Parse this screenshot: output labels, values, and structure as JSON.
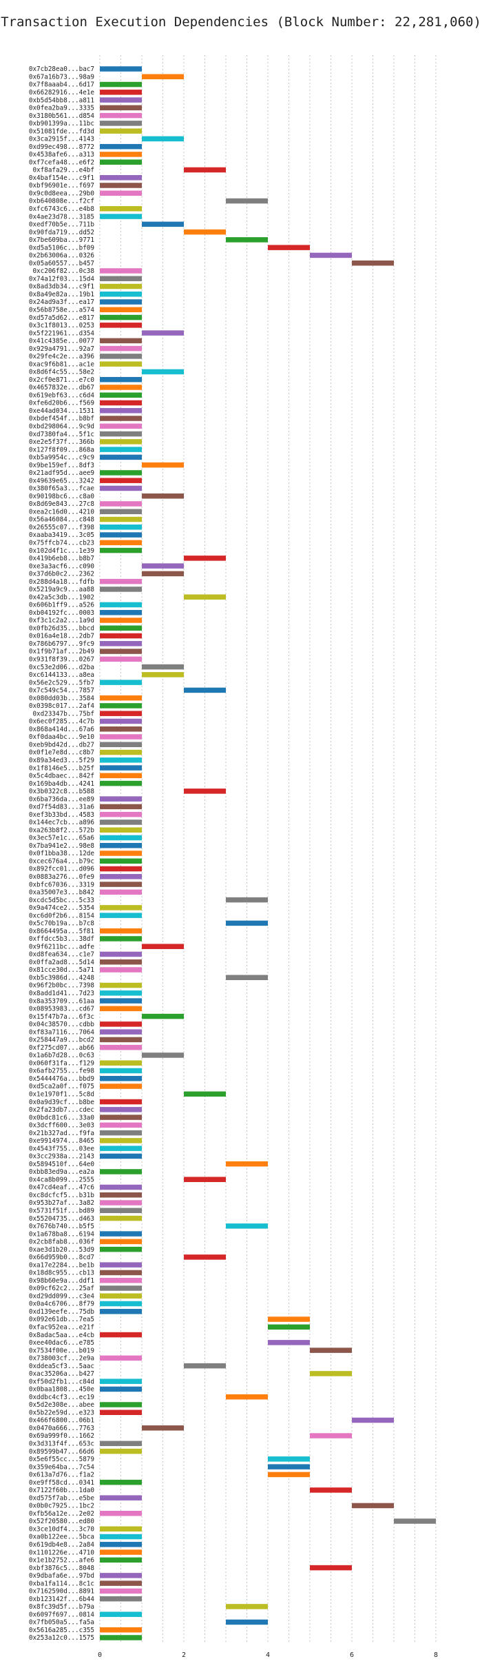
{
  "chart_data": {
    "type": "bar",
    "orientation": "horizontal",
    "title": "Transaction Execution Dependencies (Block Number: 22,281,060)",
    "xlabel": "",
    "ylabel": "",
    "xlim": [
      -0.2,
      8.4
    ],
    "xticks": [
      0,
      2,
      4,
      6,
      8
    ],
    "grid": true,
    "legend": "none",
    "palette": [
      "#1f77b4",
      "#ff7f0e",
      "#2ca02c",
      "#d62728",
      "#9467bd",
      "#8c564b",
      "#e377c2",
      "#7f7f7f",
      "#bcbd22",
      "#17becf"
    ],
    "rows": [
      {
        "tx": "0x7cb28ea0...bac7",
        "start": 0,
        "end": 1
      },
      {
        "tx": "0x67a16b73...98a9",
        "start": 1,
        "end": 2
      },
      {
        "tx": "0x7f8aaab4...6d17",
        "start": 0,
        "end": 1
      },
      {
        "tx": "0x66282916...4e1e",
        "start": 0,
        "end": 1
      },
      {
        "tx": "0xb5d54bb8...a811",
        "start": 0,
        "end": 1
      },
      {
        "tx": "0x0fea2ba9...3335",
        "start": 0,
        "end": 1
      },
      {
        "tx": "0x3180b561...d854",
        "start": 0,
        "end": 1
      },
      {
        "tx": "0xb901399a...11bc",
        "start": 0,
        "end": 1
      },
      {
        "tx": "0x51081fde...fd3d",
        "start": 0,
        "end": 1
      },
      {
        "tx": "0x3ca2915f...4143",
        "start": 1,
        "end": 2
      },
      {
        "tx": "0xd99ec498...8772",
        "start": 0,
        "end": 1
      },
      {
        "tx": "0x4538afe6...a313",
        "start": 0,
        "end": 1
      },
      {
        "tx": "0xf7cefa48...e6f2",
        "start": 0,
        "end": 1
      },
      {
        "tx": "0xf8afa29...e4bf",
        "start": 2,
        "end": 3
      },
      {
        "tx": "0x4baf154e...c9f1",
        "start": 0,
        "end": 1
      },
      {
        "tx": "0xbf96901e...f697",
        "start": 0,
        "end": 1
      },
      {
        "tx": "0x9c0d8eea...29b0",
        "start": 0,
        "end": 1
      },
      {
        "tx": "0xb640808e...f2cf",
        "start": 3,
        "end": 4
      },
      {
        "tx": "0xfc6743c6...e4b8",
        "start": 0,
        "end": 1
      },
      {
        "tx": "0x4ae23d78...3185",
        "start": 0,
        "end": 1
      },
      {
        "tx": "0xedf70b5e...711b",
        "start": 1,
        "end": 2
      },
      {
        "tx": "0x90fda719...dd52",
        "start": 2,
        "end": 3
      },
      {
        "tx": "0x7be609ba...9771",
        "start": 3,
        "end": 4
      },
      {
        "tx": "0xd5a5106c...bf09",
        "start": 4,
        "end": 5
      },
      {
        "tx": "0x2b63006a...0326",
        "start": 5,
        "end": 6
      },
      {
        "tx": "0x05a60557...b457",
        "start": 6,
        "end": 7
      },
      {
        "tx": "0xc206f82...0c38",
        "start": 0,
        "end": 1
      },
      {
        "tx": "0x74a12f03...15d4",
        "start": 0,
        "end": 1
      },
      {
        "tx": "0x8ad3db34...c9f1",
        "start": 0,
        "end": 1
      },
      {
        "tx": "0x8a49e82a...19b1",
        "start": 0,
        "end": 1
      },
      {
        "tx": "0x24ad9a3f...ea17",
        "start": 0,
        "end": 1
      },
      {
        "tx": "0x56b8758e...a574",
        "start": 0,
        "end": 1
      },
      {
        "tx": "0xd57a5d62...e817",
        "start": 0,
        "end": 1
      },
      {
        "tx": "0x3c1f8013...0253",
        "start": 0,
        "end": 1
      },
      {
        "tx": "0x5f221961...d354",
        "start": 1,
        "end": 2
      },
      {
        "tx": "0x41c4385e...0077",
        "start": 0,
        "end": 1
      },
      {
        "tx": "0x929a4791...92a7",
        "start": 0,
        "end": 1
      },
      {
        "tx": "0x29fe4c2e...a396",
        "start": 0,
        "end": 1
      },
      {
        "tx": "0xac9f6b81...ac1e",
        "start": 0,
        "end": 1
      },
      {
        "tx": "0x8d6f4c55...58e2",
        "start": 1,
        "end": 2
      },
      {
        "tx": "0x2cf0e871...e7c0",
        "start": 0,
        "end": 1
      },
      {
        "tx": "0x4657832e...db67",
        "start": 0,
        "end": 1
      },
      {
        "tx": "0x619ebf63...c6d4",
        "start": 0,
        "end": 1
      },
      {
        "tx": "0xfe6d20b6...f569",
        "start": 0,
        "end": 1
      },
      {
        "tx": "0xe44ad034...1531",
        "start": 0,
        "end": 1
      },
      {
        "tx": "0xbdef454f...b8bf",
        "start": 0,
        "end": 1
      },
      {
        "tx": "0xbd298064...9c9d",
        "start": 0,
        "end": 1
      },
      {
        "tx": "0xd7380fa4...5f1c",
        "start": 0,
        "end": 1
      },
      {
        "tx": "0xe2e5f37f...366b",
        "start": 0,
        "end": 1
      },
      {
        "tx": "0x127f8f09...868a",
        "start": 0,
        "end": 1
      },
      {
        "tx": "0xb5a9954c...c9c9",
        "start": 0,
        "end": 1
      },
      {
        "tx": "0x9be159ef...8df3",
        "start": 1,
        "end": 2
      },
      {
        "tx": "0x21adf95d...aee9",
        "start": 0,
        "end": 1
      },
      {
        "tx": "0x49639e65...3242",
        "start": 0,
        "end": 1
      },
      {
        "tx": "0x380f65a3...fcae",
        "start": 0,
        "end": 1
      },
      {
        "tx": "0x90198bc6...c8a0",
        "start": 1,
        "end": 2
      },
      {
        "tx": "0x8d69e843...27c8",
        "start": 0,
        "end": 1
      },
      {
        "tx": "0xea2c16d0...4210",
        "start": 0,
        "end": 1
      },
      {
        "tx": "0x56a46084...c848",
        "start": 0,
        "end": 1
      },
      {
        "tx": "0x26555c07...f398",
        "start": 0,
        "end": 1
      },
      {
        "tx": "0xaaba3419...3c05",
        "start": 0,
        "end": 1
      },
      {
        "tx": "0x75ffcb74...cb23",
        "start": 0,
        "end": 1
      },
      {
        "tx": "0x102d4f1c...1e39",
        "start": 0,
        "end": 1
      },
      {
        "tx": "0x419b6eb8...b8b7",
        "start": 2,
        "end": 3
      },
      {
        "tx": "0xe3a3acf6...c090",
        "start": 1,
        "end": 2
      },
      {
        "tx": "0x37d6b0c2...2362",
        "start": 1,
        "end": 2
      },
      {
        "tx": "0x288d4a18...fdfb",
        "start": 0,
        "end": 1
      },
      {
        "tx": "0x5219a9c9...aa88",
        "start": 0,
        "end": 1
      },
      {
        "tx": "0x42a5c3db...1902",
        "start": 2,
        "end": 3
      },
      {
        "tx": "0x606b1ff9...a526",
        "start": 0,
        "end": 1
      },
      {
        "tx": "0xb04192fc...0003",
        "start": 0,
        "end": 1
      },
      {
        "tx": "0xf3c1c2a2...1a9d",
        "start": 0,
        "end": 1
      },
      {
        "tx": "0x0fb26d35...bbcd",
        "start": 0,
        "end": 1
      },
      {
        "tx": "0x016a4e18...2db7",
        "start": 0,
        "end": 1
      },
      {
        "tx": "0x786b6797...9fc9",
        "start": 0,
        "end": 1
      },
      {
        "tx": "0x1f9b71af...2b49",
        "start": 0,
        "end": 1
      },
      {
        "tx": "0x931f8f39...0267",
        "start": 0,
        "end": 1
      },
      {
        "tx": "0xc53e2d06...d2ba",
        "start": 1,
        "end": 2
      },
      {
        "tx": "0xc6144133...a8ea",
        "start": 1,
        "end": 2
      },
      {
        "tx": "0x56e2c529...5fb7",
        "start": 0,
        "end": 1
      },
      {
        "tx": "0x7c549c54...7857",
        "start": 2,
        "end": 3
      },
      {
        "tx": "0x080dd03b...3584",
        "start": 0,
        "end": 1
      },
      {
        "tx": "0x0398c017...2af4",
        "start": 0,
        "end": 1
      },
      {
        "tx": "0xd23347b...75bf",
        "start": 0,
        "end": 1
      },
      {
        "tx": "0x6ec0f285...4c7b",
        "start": 0,
        "end": 1
      },
      {
        "tx": "0x868a414d...67a6",
        "start": 0,
        "end": 1
      },
      {
        "tx": "0xf0daa4bc...9e10",
        "start": 0,
        "end": 1
      },
      {
        "tx": "0xeb9bd42d...db27",
        "start": 0,
        "end": 1
      },
      {
        "tx": "0x0f1e7e8d...c8b7",
        "start": 0,
        "end": 1
      },
      {
        "tx": "0x89a34ed3...5f29",
        "start": 0,
        "end": 1
      },
      {
        "tx": "0x1f8146e5...b25f",
        "start": 0,
        "end": 1
      },
      {
        "tx": "0x5c4dbaec...842f",
        "start": 0,
        "end": 1
      },
      {
        "tx": "0x169ba4db...4241",
        "start": 0,
        "end": 1
      },
      {
        "tx": "0x3b0322c8...b588",
        "start": 2,
        "end": 3
      },
      {
        "tx": "0x6ba736da...ee89",
        "start": 0,
        "end": 1
      },
      {
        "tx": "0xd7f54d83...31a6",
        "start": 0,
        "end": 1
      },
      {
        "tx": "0xef3b33bd...4583",
        "start": 0,
        "end": 1
      },
      {
        "tx": "0x144ec7cb...a896",
        "start": 0,
        "end": 1
      },
      {
        "tx": "0xa263b8f2...572b",
        "start": 0,
        "end": 1
      },
      {
        "tx": "0x3ec57e1c...65a6",
        "start": 0,
        "end": 1
      },
      {
        "tx": "0x7ba941e2...98e8",
        "start": 0,
        "end": 1
      },
      {
        "tx": "0x0f1bba38...12de",
        "start": 0,
        "end": 1
      },
      {
        "tx": "0xcec676a4...b79c",
        "start": 0,
        "end": 1
      },
      {
        "tx": "0x892fcc01...d096",
        "start": 0,
        "end": 1
      },
      {
        "tx": "0x0883a276...0fe9",
        "start": 0,
        "end": 1
      },
      {
        "tx": "0xbfc67036...3319",
        "start": 0,
        "end": 1
      },
      {
        "tx": "0xa35007e3...b842",
        "start": 0,
        "end": 1
      },
      {
        "tx": "0xcdc5d5bc...5c33",
        "start": 3,
        "end": 4
      },
      {
        "tx": "0x9a474ce2...5354",
        "start": 0,
        "end": 1
      },
      {
        "tx": "0xc6d0f2b6...8154",
        "start": 0,
        "end": 1
      },
      {
        "tx": "0x5c70b19a...b7c8",
        "start": 3,
        "end": 4
      },
      {
        "tx": "0x8664495a...5f81",
        "start": 0,
        "end": 1
      },
      {
        "tx": "0xffdcc5b3...38df",
        "start": 0,
        "end": 1
      },
      {
        "tx": "0x9f6211bc...adfe",
        "start": 1,
        "end": 2
      },
      {
        "tx": "0xd8fea634...c1e7",
        "start": 0,
        "end": 1
      },
      {
        "tx": "0x0ffa2ad8...5d14",
        "start": 0,
        "end": 1
      },
      {
        "tx": "0x81cce30d...5a71",
        "start": 0,
        "end": 1
      },
      {
        "tx": "0xb5c3986d...4248",
        "start": 3,
        "end": 4
      },
      {
        "tx": "0x96f2b0bc...7398",
        "start": 0,
        "end": 1
      },
      {
        "tx": "0x8add1d41...7d23",
        "start": 0,
        "end": 1
      },
      {
        "tx": "0x8a353709...61aa",
        "start": 0,
        "end": 1
      },
      {
        "tx": "0x08953983...cd67",
        "start": 0,
        "end": 1
      },
      {
        "tx": "0x15f47b7a...6f3c",
        "start": 1,
        "end": 2
      },
      {
        "tx": "0x04c38570...cdbb",
        "start": 0,
        "end": 1
      },
      {
        "tx": "0xf83a7116...7064",
        "start": 0,
        "end": 1
      },
      {
        "tx": "0x258447a9...bcd2",
        "start": 0,
        "end": 1
      },
      {
        "tx": "0xf275cd07...ab66",
        "start": 0,
        "end": 1
      },
      {
        "tx": "0x1a6b7d28...0c63",
        "start": 1,
        "end": 2
      },
      {
        "tx": "0x060f31fa...f129",
        "start": 0,
        "end": 1
      },
      {
        "tx": "0x6afb2755...fe98",
        "start": 0,
        "end": 1
      },
      {
        "tx": "0x5444476a...bbd9",
        "start": 0,
        "end": 1
      },
      {
        "tx": "0xd5ca2a0f...f075",
        "start": 0,
        "end": 1
      },
      {
        "tx": "0x1e1970f1...5c8d",
        "start": 2,
        "end": 3
      },
      {
        "tx": "0x0a9d39cf...b8be",
        "start": 0,
        "end": 1
      },
      {
        "tx": "0x2fa23db7...cdec",
        "start": 0,
        "end": 1
      },
      {
        "tx": "0x0bdc81c6...33a0",
        "start": 0,
        "end": 1
      },
      {
        "tx": "0x3dcff600...3e03",
        "start": 0,
        "end": 1
      },
      {
        "tx": "0x21b327ad...f9fa",
        "start": 0,
        "end": 1
      },
      {
        "tx": "0xe9914974...8465",
        "start": 0,
        "end": 1
      },
      {
        "tx": "0x4543f755...03ee",
        "start": 0,
        "end": 1
      },
      {
        "tx": "0x3cc2938a...2143",
        "start": 0,
        "end": 1
      },
      {
        "tx": "0x5894510f...64e0",
        "start": 3,
        "end": 4
      },
      {
        "tx": "0xbb83ed9a...ea2a",
        "start": 0,
        "end": 1
      },
      {
        "tx": "0x4ca8b099...2555",
        "start": 2,
        "end": 3
      },
      {
        "tx": "0x47cd4eaf...47c6",
        "start": 0,
        "end": 1
      },
      {
        "tx": "0xc8dcfcf5...b31b",
        "start": 0,
        "end": 1
      },
      {
        "tx": "0x953b27af...3a82",
        "start": 0,
        "end": 1
      },
      {
        "tx": "0x5731f51f...bd89",
        "start": 0,
        "end": 1
      },
      {
        "tx": "0x55204735...d463",
        "start": 0,
        "end": 1
      },
      {
        "tx": "0x7676b740...b5f5",
        "start": 3,
        "end": 4
      },
      {
        "tx": "0x1a678ba8...6194",
        "start": 0,
        "end": 1
      },
      {
        "tx": "0x2cb8fab8...036f",
        "start": 0,
        "end": 1
      },
      {
        "tx": "0xae3d1b20...53d9",
        "start": 0,
        "end": 1
      },
      {
        "tx": "0x66d959b0...8cd7",
        "start": 2,
        "end": 3
      },
      {
        "tx": "0xa17e2284...be1b",
        "start": 0,
        "end": 1
      },
      {
        "tx": "0x18d8c955...cb13",
        "start": 0,
        "end": 1
      },
      {
        "tx": "0x98b60e9a...ddf1",
        "start": 0,
        "end": 1
      },
      {
        "tx": "0x09cf62c2...25af",
        "start": 0,
        "end": 1
      },
      {
        "tx": "0xd29dd099...c3e4",
        "start": 0,
        "end": 1
      },
      {
        "tx": "0x0a4c6706...8f79",
        "start": 0,
        "end": 1
      },
      {
        "tx": "0xd139eefe...75db",
        "start": 0,
        "end": 1
      },
      {
        "tx": "0x092e61db...7ea5",
        "start": 4,
        "end": 5
      },
      {
        "tx": "0xfac952ea...e21f",
        "start": 4,
        "end": 5
      },
      {
        "tx": "0x8adac5aa...e4cb",
        "start": 0,
        "end": 1
      },
      {
        "tx": "0xee40dac6...e785",
        "start": 4,
        "end": 5
      },
      {
        "tx": "0x7534f00e...b019",
        "start": 5,
        "end": 6
      },
      {
        "tx": "0x738003cf...2e9a",
        "start": 0,
        "end": 1
      },
      {
        "tx": "0xddea5cf3...5aac",
        "start": 2,
        "end": 3
      },
      {
        "tx": "0xac35206a...b427",
        "start": 5,
        "end": 6
      },
      {
        "tx": "0xf50d2fb1...c84d",
        "start": 0,
        "end": 1
      },
      {
        "tx": "0x0baa1808...450e",
        "start": 0,
        "end": 1
      },
      {
        "tx": "0xddbc4cf3...ec19",
        "start": 3,
        "end": 4
      },
      {
        "tx": "0x5d2e308e...abee",
        "start": 0,
        "end": 1
      },
      {
        "tx": "0x5b22e59d...e323",
        "start": 0,
        "end": 1
      },
      {
        "tx": "0x466f6800...06b1",
        "start": 6,
        "end": 7
      },
      {
        "tx": "0x0470a666...7763",
        "start": 1,
        "end": 2
      },
      {
        "tx": "0x69a999f0...1662",
        "start": 5,
        "end": 6
      },
      {
        "tx": "0x3d313f4f...653c",
        "start": 0,
        "end": 1
      },
      {
        "tx": "0x89599b47...66d6",
        "start": 0,
        "end": 1
      },
      {
        "tx": "0x5e6f55cc...5879",
        "start": 4,
        "end": 5
      },
      {
        "tx": "0x359e64ba...7c54",
        "start": 4,
        "end": 5
      },
      {
        "tx": "0x613a7d76...f1a2",
        "start": 4,
        "end": 5
      },
      {
        "tx": "0xe9ff58cd...0341",
        "start": 0,
        "end": 1
      },
      {
        "tx": "0x7122f60b...1da0",
        "start": 5,
        "end": 6
      },
      {
        "tx": "0xd575f7ab...e5be",
        "start": 0,
        "end": 1
      },
      {
        "tx": "0x0b0c7925...1bc2",
        "start": 6,
        "end": 7
      },
      {
        "tx": "0xfb56a12e...2e02",
        "start": 0,
        "end": 1
      },
      {
        "tx": "0x52f20580...ed80",
        "start": 7,
        "end": 8
      },
      {
        "tx": "0x3ce10df4...3c70",
        "start": 0,
        "end": 1
      },
      {
        "tx": "0xa0b122ee...5bca",
        "start": 0,
        "end": 1
      },
      {
        "tx": "0x619db4e8...2a84",
        "start": 0,
        "end": 1
      },
      {
        "tx": "0x1101226e...4710",
        "start": 0,
        "end": 1
      },
      {
        "tx": "0x1e1b2752...afe6",
        "start": 0,
        "end": 1
      },
      {
        "tx": "0xbf3876c5...8048",
        "start": 5,
        "end": 6
      },
      {
        "tx": "0x9dbafa6e...97bd",
        "start": 0,
        "end": 1
      },
      {
        "tx": "0xba1fa114...8c1c",
        "start": 0,
        "end": 1
      },
      {
        "tx": "0x7162590d...8891",
        "start": 0,
        "end": 1
      },
      {
        "tx": "0xb123142f...6b44",
        "start": 0,
        "end": 1
      },
      {
        "tx": "0x8fc39d5f...b79a",
        "start": 3,
        "end": 4
      },
      {
        "tx": "0x6097f697...0814",
        "start": 0,
        "end": 1
      },
      {
        "tx": "0x7fb050a5...fa5a",
        "start": 3,
        "end": 4
      },
      {
        "tx": "0x5616a285...c355",
        "start": 0,
        "end": 1
      },
      {
        "tx": "0x253a12c0...1575",
        "start": 0,
        "end": 1
      }
    ]
  }
}
